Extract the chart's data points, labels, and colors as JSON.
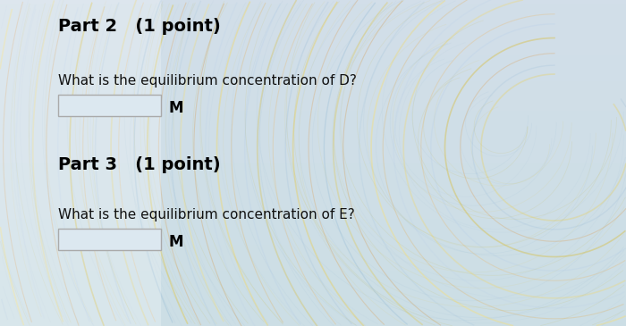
{
  "title_part2": "Part 2   (1 point)",
  "question_d": "What is the equilibrium concentration of D?",
  "unit_d": "M",
  "title_part3": "Part 3   (1 point)",
  "question_e": "What is the equilibrium concentration of E?",
  "unit_e": "M",
  "bg_color_top": "#d8e4ee",
  "bg_color_bottom": "#c8dce0",
  "text_color": "#111111",
  "bold_color": "#000000",
  "box_border": "#aaaaaa",
  "title_fontsize": 14,
  "question_fontsize": 11,
  "unit_fontsize": 12
}
